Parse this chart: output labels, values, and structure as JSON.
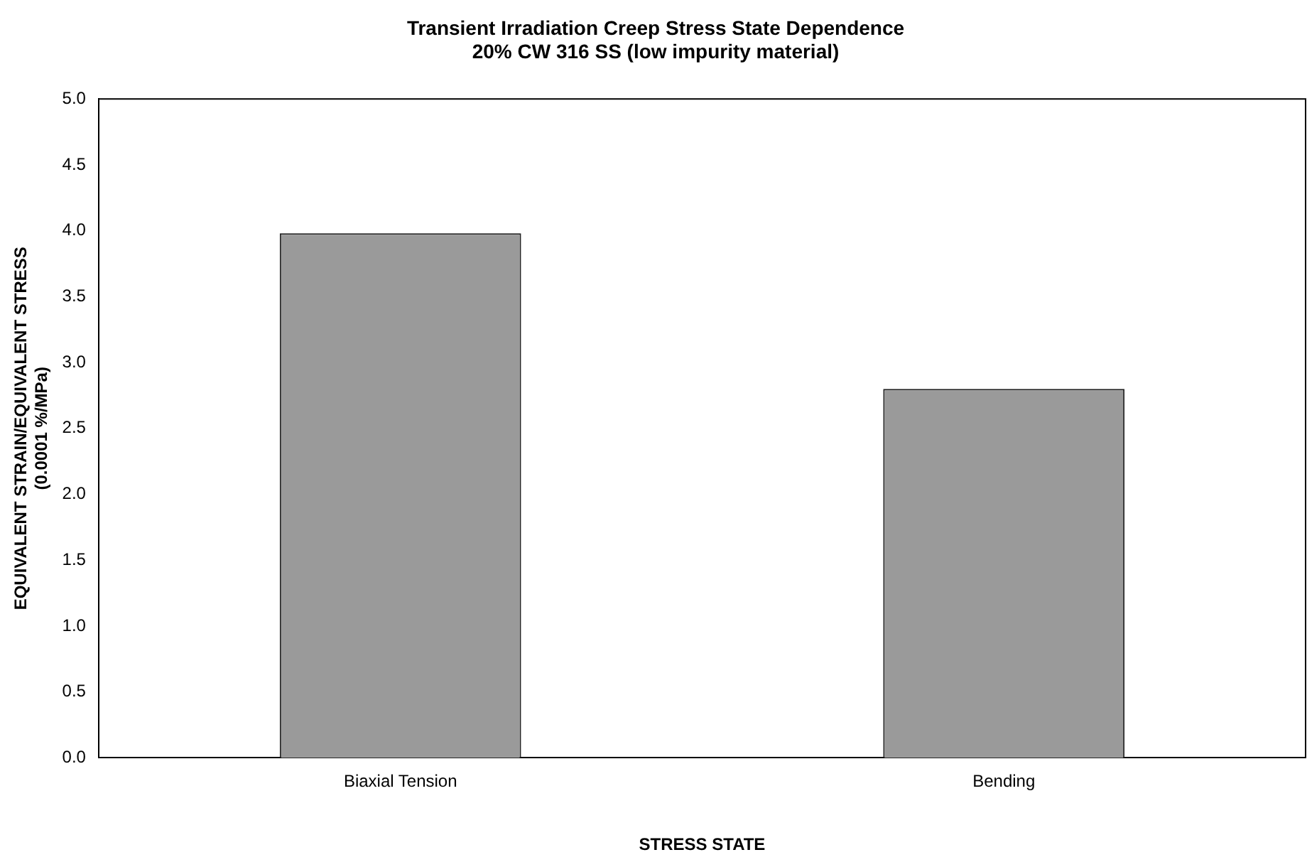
{
  "chart_data": {
    "type": "bar",
    "title": "Transient Irradiation Creep Stress State Dependence",
    "subtitle": "20% CW 316 SS (low impurity material)",
    "xlabel": "STRESS STATE",
    "ylabel": "EQUIVALENT STRAIN/EQUIVALENT STRESS\n(0.0001 %/MPa)",
    "categories": [
      "Biaxial Tension",
      "Bending"
    ],
    "values": [
      3.98,
      2.8
    ],
    "color": "#9a9a9a",
    "ylim": [
      0,
      5
    ],
    "yticks": [
      {
        "value": 0,
        "label": "0.0"
      },
      {
        "value": 0.5,
        "label": "0.5"
      },
      {
        "value": 1,
        "label": "1.0"
      },
      {
        "value": 1.5,
        "label": "1.5"
      },
      {
        "value": 2,
        "label": "2.0"
      },
      {
        "value": 2.5,
        "label": "2.5"
      },
      {
        "value": 3,
        "label": "3.0"
      },
      {
        "value": 3.5,
        "label": "3.5"
      },
      {
        "value": 4,
        "label": "4.0"
      },
      {
        "value": 4.5,
        "label": "4.5"
      },
      {
        "value": 5,
        "label": "5.0"
      }
    ],
    "grid": false,
    "legend": false
  }
}
